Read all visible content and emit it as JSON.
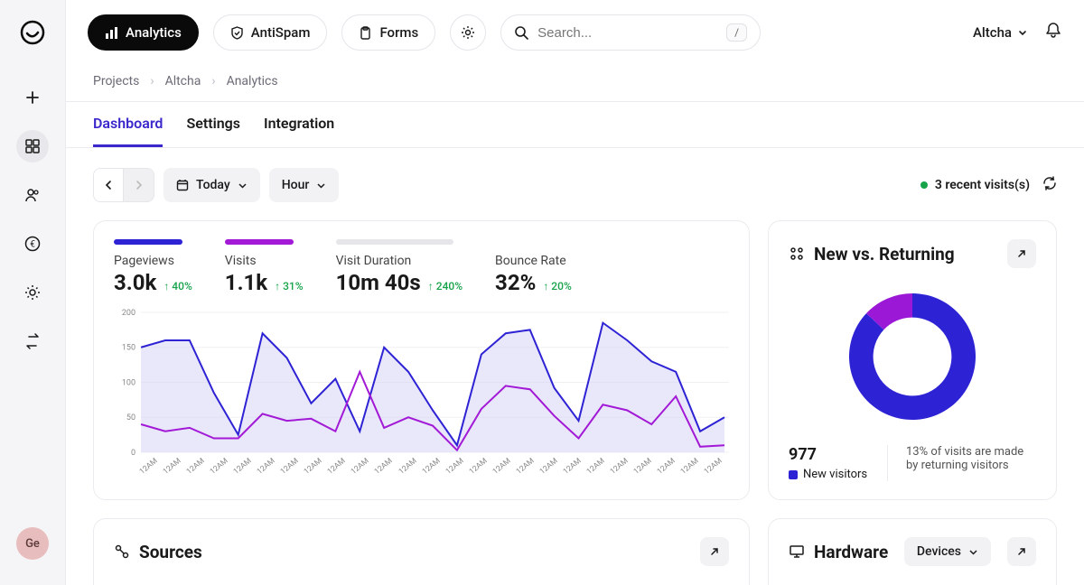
{
  "topbar": {
    "nav": [
      {
        "label": "Analytics",
        "icon": "bars",
        "active": true
      },
      {
        "label": "AntiSpam",
        "icon": "shield",
        "active": false
      },
      {
        "label": "Forms",
        "icon": "clipboard",
        "active": false
      }
    ],
    "search_placeholder": "Search...",
    "search_kbd": "/",
    "user": "Altcha"
  },
  "sidebar": {
    "avatar": "Ge"
  },
  "breadcrumb": [
    "Projects",
    "Altcha",
    "Analytics"
  ],
  "tabs": [
    {
      "label": "Dashboard",
      "active": true
    },
    {
      "label": "Settings",
      "active": false
    },
    {
      "label": "Integration",
      "active": false
    }
  ],
  "toolbar": {
    "date_label": "Today",
    "granularity": "Hour",
    "status_text": "3 recent visits(s)"
  },
  "stats": [
    {
      "label": "Pageviews",
      "value": "3.0k",
      "delta": "↑ 40%",
      "color": "#2e23d4"
    },
    {
      "label": "Visits",
      "value": "1.1k",
      "delta": "↑ 31%",
      "color": "#a219d6"
    },
    {
      "label": "Visit Duration",
      "value": "10m 40s",
      "delta": "↑ 240%",
      "color": "#e5e5ea"
    },
    {
      "label": "Bounce Rate",
      "value": "32%",
      "delta": "↑ 20%",
      "color": null
    }
  ],
  "main_chart": {
    "type": "area",
    "ylim": [
      0,
      200
    ],
    "yticks": [
      0,
      50,
      100,
      150,
      200
    ],
    "x_label": "12AM",
    "x_count": 25,
    "series": [
      {
        "name": "pageviews",
        "color": "#2e23d4",
        "fill": "#d7d4f6",
        "fill_opacity": 0.55,
        "values": [
          150,
          160,
          160,
          85,
          25,
          170,
          135,
          70,
          105,
          30,
          150,
          115,
          60,
          10,
          140,
          170,
          175,
          92,
          45,
          185,
          160,
          130,
          115,
          30,
          50
        ]
      },
      {
        "name": "visits",
        "color": "#a219d6",
        "fill": "none",
        "values": [
          40,
          30,
          35,
          20,
          20,
          55,
          45,
          48,
          30,
          115,
          35,
          50,
          38,
          3,
          62,
          95,
          90,
          52,
          20,
          68,
          60,
          40,
          80,
          8,
          10
        ]
      }
    ],
    "background": "#ffffff",
    "grid_color": "#f0f0f3",
    "axis_font_size": 9
  },
  "donut": {
    "title": "New vs. Returning",
    "type": "donut",
    "new_pct": 87,
    "returning_pct": 13,
    "new_color": "#2e23d4",
    "returning_color": "#9b19d6",
    "inner_radius_pct": 62,
    "legend_value": "977",
    "legend_label": "New visitors",
    "description": "13% of visits are made by returning visitors"
  },
  "sources": {
    "title": "Sources"
  },
  "hardware": {
    "title": "Hardware",
    "dropdown": "Devices"
  }
}
